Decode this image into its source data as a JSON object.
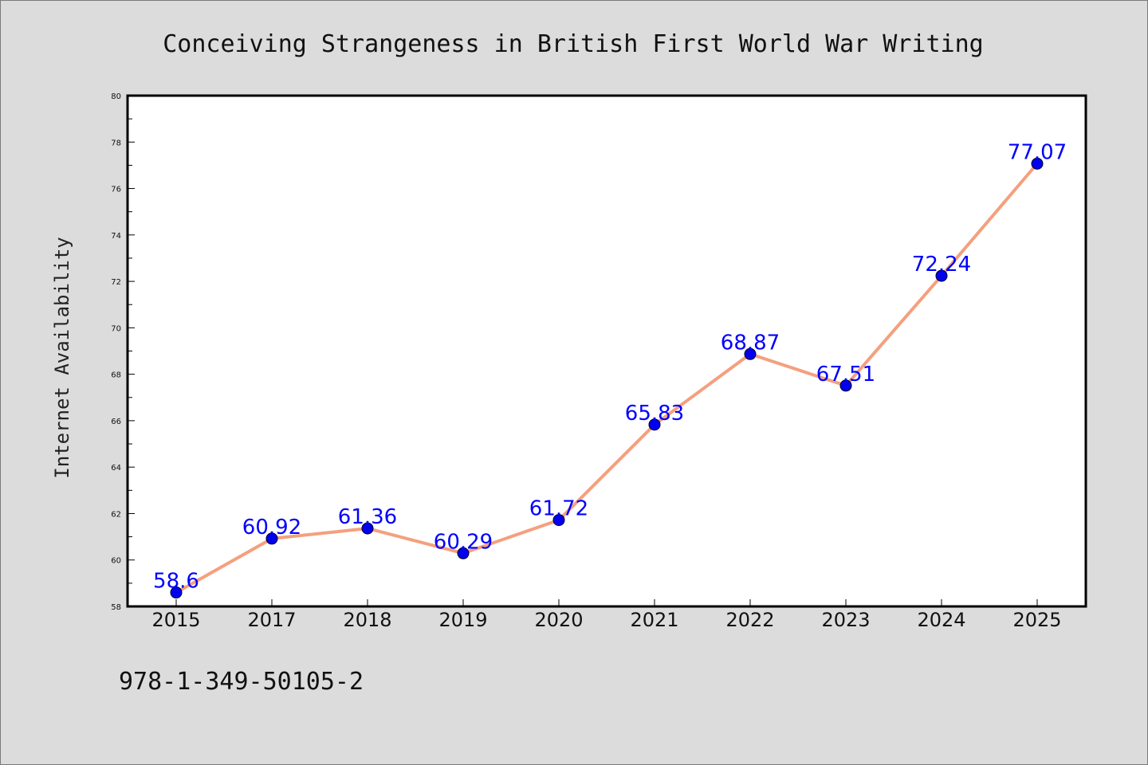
{
  "footer_text": "978-1-349-50105-2",
  "chart_data": {
    "type": "line",
    "title": "Conceiving Strangeness in British First World War Writing",
    "xlabel": "",
    "ylabel": "Internet Availability",
    "categories": [
      "2015",
      "2017",
      "2018",
      "2019",
      "2020",
      "2021",
      "2022",
      "2023",
      "2024",
      "2025"
    ],
    "series": [
      {
        "values": [
          58.6,
          60.92,
          61.36,
          60.29,
          61.72,
          65.83,
          68.87,
          67.51,
          72.24,
          77.07
        ],
        "labels": [
          "58.6",
          "60.92",
          "61.36",
          "60.29",
          "61.72",
          "65.83",
          "68.87",
          "67.51",
          "72.24",
          "77.07"
        ]
      }
    ],
    "ylim": [
      58,
      80
    ],
    "yticks": [
      "58",
      "60",
      "62",
      "64",
      "66",
      "68",
      "70",
      "72",
      "74",
      "76",
      "78",
      "80"
    ],
    "grid": false,
    "legend": "none",
    "colors": {
      "line": "#f4a07e",
      "marker": "#0000ee",
      "data_label": "#0000ff",
      "plot_background": "#ffffff",
      "page_background": "#dcdcdc"
    }
  }
}
